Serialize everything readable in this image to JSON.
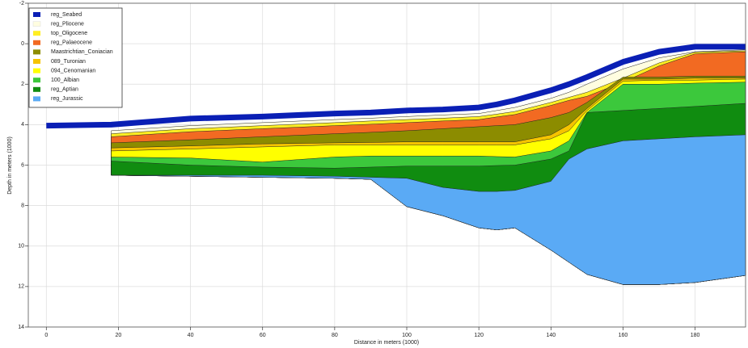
{
  "chart_data": {
    "type": "layers",
    "xlabel": "Distance in meters (1000)",
    "ylabel": "Depth in meters (1000)",
    "xlim": [
      -5,
      194
    ],
    "ylim": [
      -2,
      14
    ],
    "y_inverted": true,
    "grid": true,
    "legend": "upper left",
    "xticks": [
      0,
      20,
      40,
      60,
      80,
      100,
      120,
      140,
      160,
      180
    ],
    "yticks": [
      -2,
      0,
      2,
      4,
      6,
      8,
      10,
      12,
      14
    ],
    "x": [
      0,
      18,
      40,
      60,
      80,
      90,
      100,
      110,
      120,
      125,
      130,
      140,
      145,
      150,
      160,
      170,
      180,
      194
    ],
    "base": [
      null,
      6.5,
      6.55,
      6.6,
      6.65,
      6.7,
      8.05,
      8.5,
      9.1,
      9.2,
      9.1,
      10.2,
      10.8,
      11.4,
      11.9,
      11.9,
      11.8,
      11.45
    ],
    "series": [
      {
        "name": "reg_Seabed",
        "color": "#0a1fb5",
        "style": "band",
        "values": [
          4.05,
          4.0,
          3.7,
          3.6,
          3.45,
          3.4,
          3.3,
          3.25,
          3.15,
          3.0,
          2.8,
          2.3,
          2.0,
          1.65,
          0.9,
          0.4,
          0.15,
          0.15
        ]
      },
      {
        "name": "reg_Pliocene",
        "color": "#fffde0",
        "values": [
          null,
          4.3,
          4.05,
          3.9,
          3.75,
          3.68,
          3.6,
          3.52,
          3.45,
          3.3,
          3.15,
          2.7,
          2.4,
          2.0,
          1.25,
          0.7,
          0.4,
          0.3
        ]
      },
      {
        "name": "top_Oligocene",
        "color": "#ffee22",
        "values": [
          null,
          4.45,
          4.2,
          4.05,
          3.9,
          3.82,
          3.75,
          3.68,
          3.6,
          3.48,
          3.35,
          2.9,
          2.65,
          2.4,
          1.7,
          0.95,
          0.42,
          0.35
        ]
      },
      {
        "name": "reg_Palaeocene",
        "color": "#f26a22",
        "values": [
          null,
          4.6,
          4.35,
          4.2,
          4.05,
          3.98,
          3.9,
          3.82,
          3.75,
          3.62,
          3.5,
          3.05,
          2.8,
          2.6,
          1.9,
          1.1,
          0.5,
          0.4
        ]
      },
      {
        "name": "Maastrichtian_Coniacian",
        "color": "#8c8c00",
        "values": [
          null,
          4.9,
          4.75,
          4.6,
          4.45,
          4.38,
          4.3,
          4.2,
          4.1,
          4.05,
          4.0,
          3.65,
          3.4,
          2.9,
          1.65,
          1.65,
          1.6,
          1.6
        ]
      },
      {
        "name": "089_Turonian",
        "color": "#f5c400",
        "values": [
          null,
          5.15,
          5.05,
          4.95,
          4.9,
          4.88,
          4.85,
          4.85,
          4.85,
          4.85,
          4.85,
          4.5,
          4.0,
          3.2,
          1.75,
          1.75,
          1.7,
          1.7
        ]
      },
      {
        "name": "094_Cenomanian",
        "color": "#ffff00",
        "values": [
          null,
          5.3,
          5.2,
          5.1,
          5.0,
          5.0,
          5.0,
          5.0,
          5.0,
          5.0,
          5.0,
          4.7,
          4.3,
          3.3,
          1.85,
          1.8,
          1.8,
          1.75
        ]
      },
      {
        "name": "100_Albian",
        "color": "#3cc83c",
        "values": [
          null,
          5.6,
          5.65,
          5.85,
          5.6,
          5.55,
          5.55,
          5.55,
          5.55,
          5.58,
          5.6,
          5.3,
          4.8,
          3.4,
          2.0,
          2.0,
          1.95,
          1.9
        ]
      },
      {
        "name": "reg_Aptian",
        "color": "#108c10",
        "values": [
          null,
          5.8,
          6.0,
          6.1,
          6.15,
          6.1,
          6.05,
          6.05,
          6.05,
          6.02,
          6.0,
          5.7,
          5.3,
          3.4,
          3.3,
          3.2,
          3.1,
          2.95
        ]
      },
      {
        "name": "reg_Jurassic",
        "color": "#5aaaf5",
        "values": [
          null,
          6.5,
          6.5,
          6.5,
          6.55,
          6.6,
          6.65,
          7.1,
          7.3,
          7.3,
          7.25,
          6.8,
          5.7,
          5.2,
          4.8,
          4.7,
          4.6,
          4.5
        ]
      }
    ]
  }
}
